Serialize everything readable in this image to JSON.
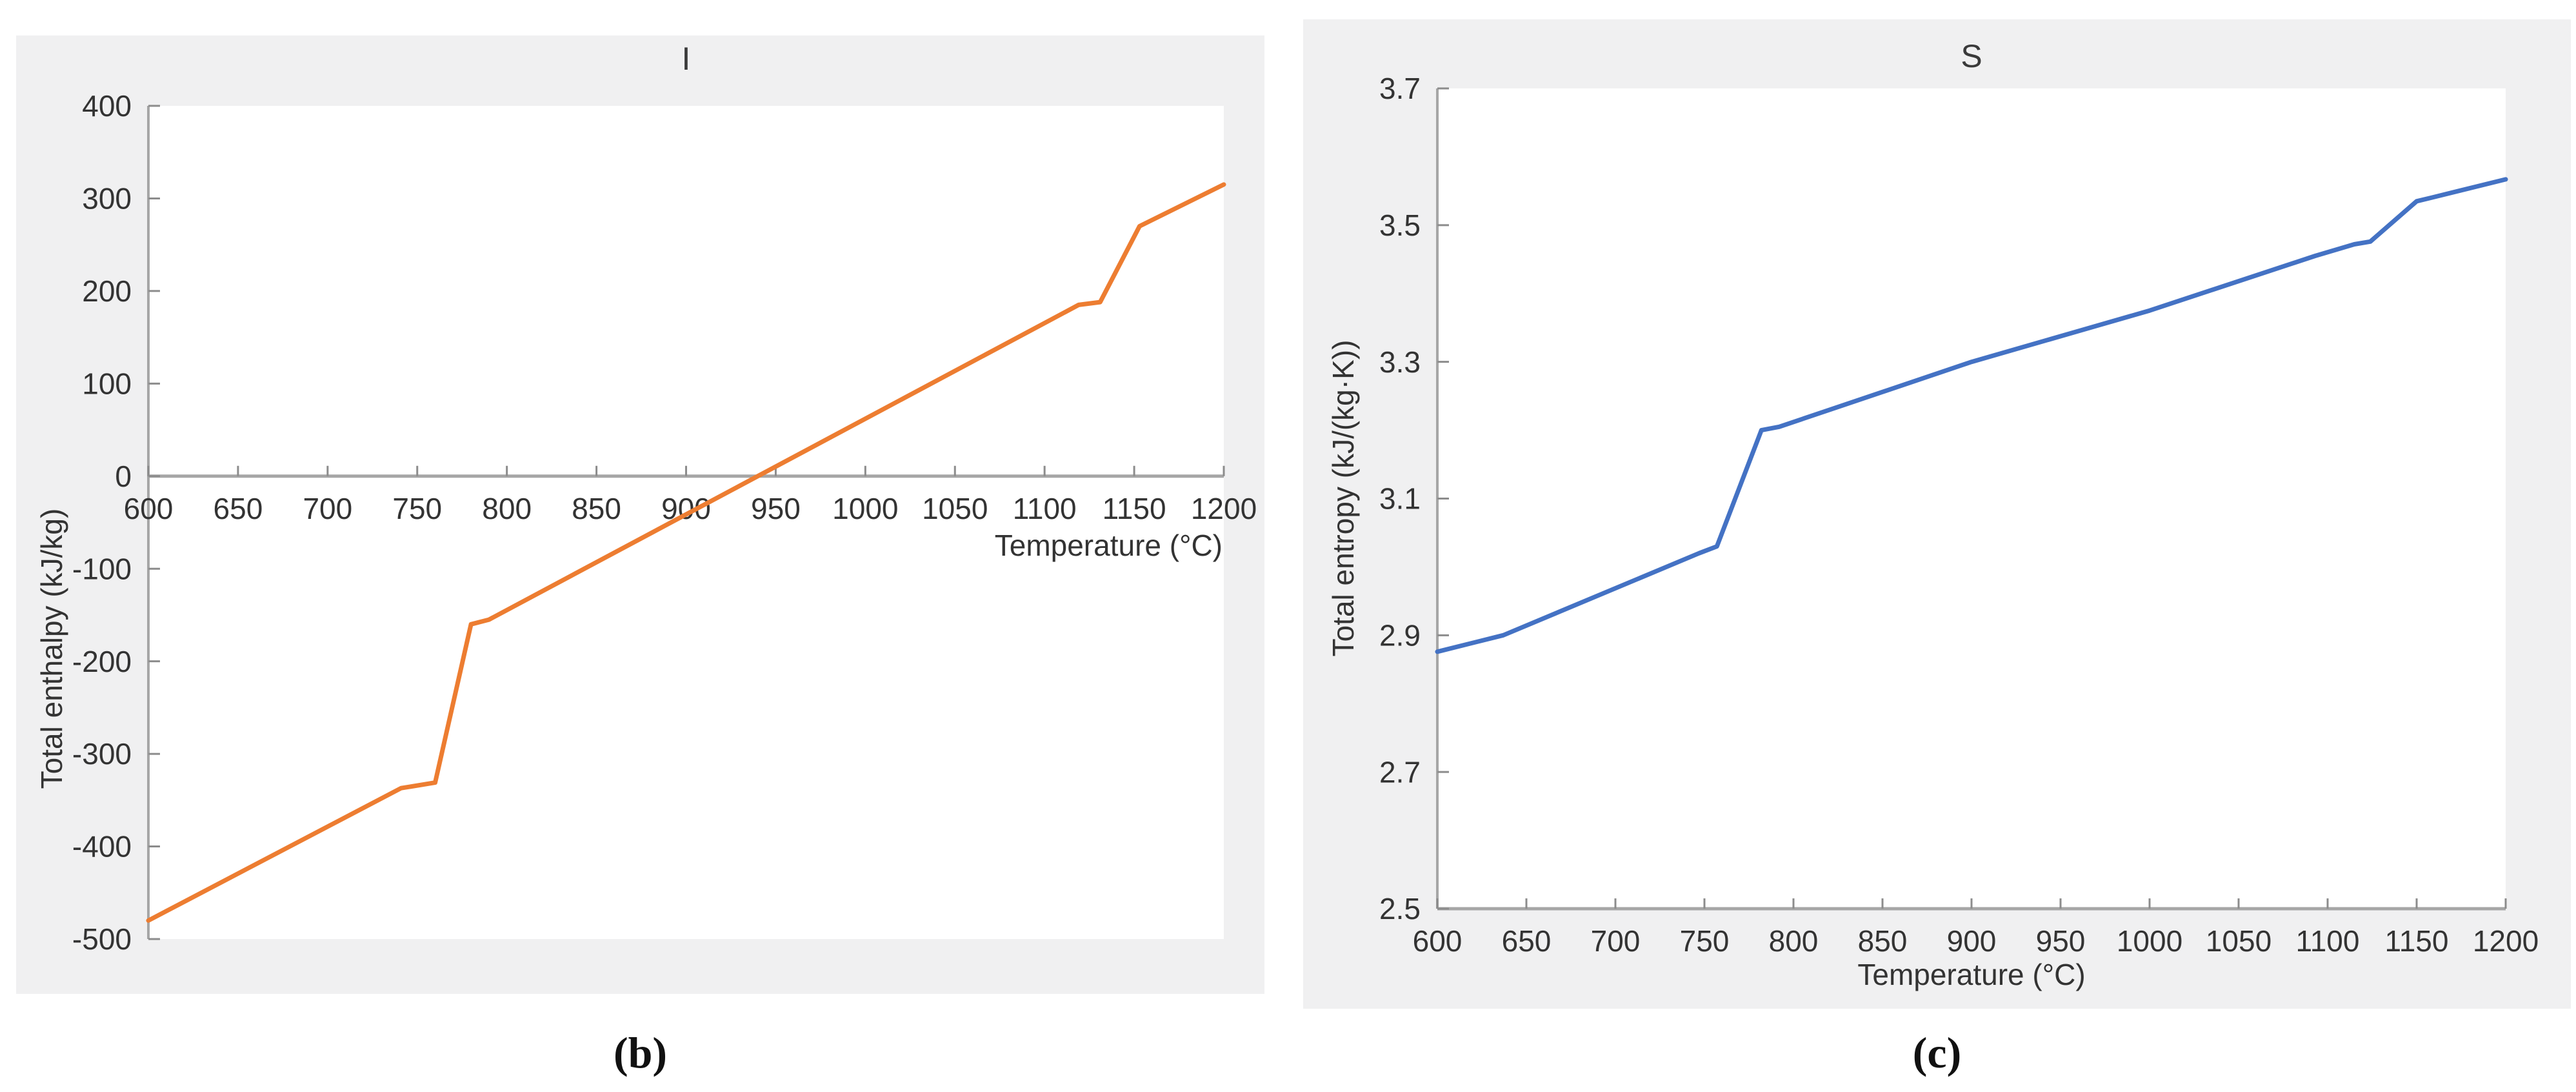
{
  "palette": {
    "figure_background": "#f0f0f1",
    "plot_background": "#ffffff",
    "axis_line": "#a6a6a6",
    "tick_mark": "#8c8c8c",
    "tick_text": "#333333",
    "enthalpy_line": "#ED7D31",
    "entropy_line": "#4472C4"
  },
  "captions": [
    {
      "label": "(b)"
    },
    {
      "label": "(c)"
    }
  ],
  "chart_data": [
    {
      "type": "line",
      "title": "I",
      "xlabel": "Temperature (°C)",
      "ylabel": "Total enthalpy (kJ/kg)",
      "xlim": [
        600,
        1200
      ],
      "ylim": [
        -500,
        400
      ],
      "xticks": [
        600,
        650,
        700,
        750,
        800,
        850,
        900,
        950,
        1000,
        1050,
        1100,
        1150,
        1200
      ],
      "yticks": [
        400,
        300,
        200,
        100,
        0,
        -100,
        -200,
        -300,
        -400,
        -500
      ],
      "grid": false,
      "legend": "none",
      "x_axis_at_zero": true,
      "xlabel_align": "right",
      "series": [
        {
          "name": "Total enthalpy",
          "color": "#ED7D31",
          "points": [
            [
              600,
              -480
            ],
            [
              741,
              -337
            ],
            [
              760,
              -331
            ],
            [
              780,
              -160
            ],
            [
              790,
              -155
            ],
            [
              1119,
              185
            ],
            [
              1131,
              188
            ],
            [
              1153,
              270
            ],
            [
              1200,
              315
            ]
          ]
        }
      ]
    },
    {
      "type": "line",
      "title": "S",
      "xlabel": "Temperature (°C)",
      "ylabel": "Total entropy (kJ/(kg·K))",
      "xlim": [
        600,
        1200
      ],
      "ylim": [
        2.5,
        3.7
      ],
      "xticks": [
        600,
        650,
        700,
        750,
        800,
        850,
        900,
        950,
        1000,
        1050,
        1100,
        1150,
        1200
      ],
      "yticks": [
        3.7,
        3.5,
        3.3,
        3.1,
        2.9,
        2.7,
        2.5
      ],
      "grid": false,
      "legend": "none",
      "x_axis_at_zero": false,
      "xlabel_align": "center",
      "series": [
        {
          "name": "Total entropy",
          "color": "#4472C4",
          "points": [
            [
              600,
              2.876
            ],
            [
              637,
              2.9
            ],
            [
              747,
              3.02
            ],
            [
              757,
              3.03
            ],
            [
              782,
              3.2
            ],
            [
              792,
              3.205
            ],
            [
              900,
              3.3
            ],
            [
              1000,
              3.375
            ],
            [
              1093,
              3.455
            ],
            [
              1115,
              3.472
            ],
            [
              1124,
              3.476
            ],
            [
              1150,
              3.535
            ],
            [
              1158,
              3.54
            ],
            [
              1200,
              3.567
            ]
          ]
        }
      ]
    }
  ]
}
